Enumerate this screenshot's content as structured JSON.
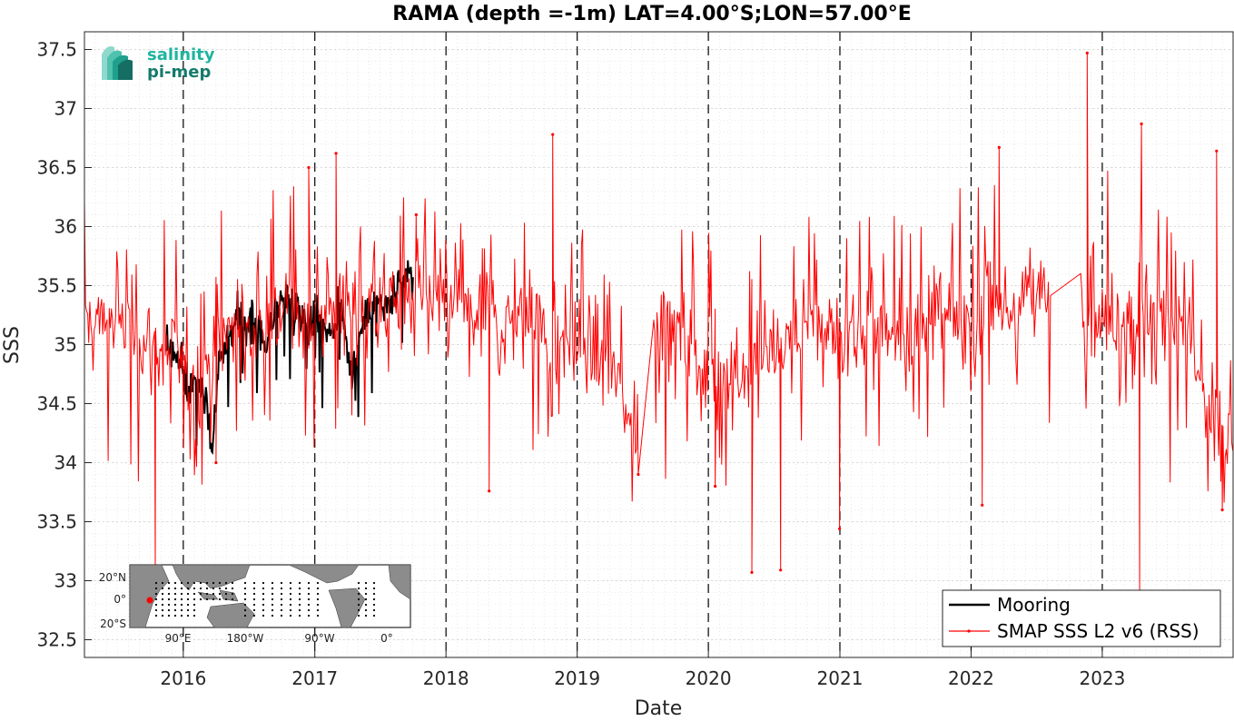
{
  "chart_data": {
    "type": "line",
    "title": "RAMA (depth =-1m) LAT=4.00°S;LON=57.00°E",
    "xlabel": "Date",
    "ylabel": "SSS",
    "xlim": [
      "2015-04-01",
      "2023-12-31"
    ],
    "ylim": [
      32.35,
      37.65
    ],
    "x_ticks": [
      "2016",
      "2017",
      "2018",
      "2019",
      "2020",
      "2021",
      "2022",
      "2023"
    ],
    "y_ticks": [
      "32.5",
      "33",
      "33.5",
      "34",
      "34.5",
      "35",
      "35.5",
      "36",
      "36.5",
      "37",
      "37.5"
    ],
    "y_tick_values": [
      32.5,
      33,
      33.5,
      34,
      34.5,
      35,
      35.5,
      36,
      36.5,
      37,
      37.5
    ],
    "year_marker_dates": [
      "2016-01-01",
      "2017-01-01",
      "2018-01-01",
      "2019-01-01",
      "2020-01-01",
      "2021-01-01",
      "2022-01-01",
      "2023-01-01"
    ],
    "grid": true,
    "legend_position": "bottom-right",
    "series": [
      {
        "name": "Mooring",
        "color": "#000000",
        "points": [
          [
            "2015-11-15",
            35.0
          ],
          [
            "2015-12-15",
            34.9
          ],
          [
            "2016-01-15",
            34.6
          ],
          [
            "2016-02-10",
            34.75
          ],
          [
            "2016-03-05",
            34.6
          ],
          [
            "2016-03-20",
            34.1
          ],
          [
            "2016-04-10",
            34.9
          ],
          [
            "2016-05-10",
            35.1
          ],
          [
            "2016-06-10",
            35.2
          ],
          [
            "2016-07-15",
            35.15
          ],
          [
            "2016-08-15",
            35.0
          ],
          [
            "2016-09-15",
            35.3
          ],
          [
            "2016-10-15",
            35.4
          ],
          [
            "2016-11-15",
            35.3
          ],
          [
            "2016-12-15",
            35.2
          ],
          [
            "2017-01-15",
            35.25
          ],
          [
            "2017-02-15",
            35.1
          ],
          [
            "2017-03-15",
            35.3
          ],
          [
            "2017-04-15",
            34.75
          ],
          [
            "2017-05-15",
            35.2
          ],
          [
            "2017-06-15",
            35.35
          ],
          [
            "2017-07-15",
            35.3
          ],
          [
            "2017-08-15",
            35.4
          ],
          [
            "2017-09-01",
            35.5
          ],
          [
            "2017-09-15",
            35.6
          ],
          [
            "2017-10-01",
            35.55
          ]
        ]
      },
      {
        "name": "SMAP SSS L2 v6 (RSS)",
        "color": "#ff0000",
        "base_points": [
          [
            "2015-04-01",
            35.2
          ],
          [
            "2015-07-01",
            35.2
          ],
          [
            "2015-10-01",
            35.0
          ],
          [
            "2016-01-01",
            34.9
          ],
          [
            "2016-03-01",
            34.8
          ],
          [
            "2016-05-01",
            35.1
          ],
          [
            "2016-07-01",
            35.1
          ],
          [
            "2016-10-01",
            35.3
          ],
          [
            "2017-01-01",
            35.2
          ],
          [
            "2017-04-01",
            35.25
          ],
          [
            "2017-07-01",
            35.35
          ],
          [
            "2017-10-01",
            35.4
          ],
          [
            "2018-01-01",
            35.3
          ],
          [
            "2018-04-01",
            35.25
          ],
          [
            "2018-07-01",
            35.2
          ],
          [
            "2018-10-01",
            35.15
          ],
          [
            "2019-01-01",
            35.05
          ],
          [
            "2019-04-01",
            34.8
          ],
          [
            "2019-06-15",
            34.3
          ],
          [
            "2019-07-01",
            35.0
          ],
          [
            "2019-10-01",
            35.2
          ],
          [
            "2020-01-01",
            34.8
          ],
          [
            "2020-04-01",
            34.75
          ],
          [
            "2020-07-01",
            35.0
          ],
          [
            "2020-10-01",
            35.1
          ],
          [
            "2021-01-01",
            35.15
          ],
          [
            "2021-04-01",
            35.1
          ],
          [
            "2021-07-01",
            35.15
          ],
          [
            "2021-10-01",
            35.25
          ],
          [
            "2022-01-01",
            35.2
          ],
          [
            "2022-04-01",
            35.3
          ],
          [
            "2022-07-01",
            35.35
          ],
          [
            "2022-08-10",
            35.5
          ],
          [
            "2022-11-01",
            35.4
          ],
          [
            "2023-01-01",
            35.25
          ],
          [
            "2023-04-01",
            35.35
          ],
          [
            "2023-07-01",
            35.3
          ],
          [
            "2023-09-01",
            35.0
          ],
          [
            "2023-11-01",
            34.3
          ],
          [
            "2023-12-31",
            34.2
          ]
        ],
        "notable_points": [
          [
            "2015-10-15",
            33.1
          ],
          [
            "2016-04-01",
            34.0
          ],
          [
            "2016-12-15",
            36.5
          ],
          [
            "2017-03-01",
            36.62
          ],
          [
            "2017-10-10",
            36.1
          ],
          [
            "2018-05-01",
            33.76
          ],
          [
            "2018-10-25",
            36.78
          ],
          [
            "2019-06-20",
            33.9
          ],
          [
            "2020-01-20",
            33.8
          ],
          [
            "2020-05-01",
            33.07
          ],
          [
            "2020-07-20",
            33.09
          ],
          [
            "2020-12-31",
            33.44
          ],
          [
            "2022-02-01",
            33.64
          ],
          [
            "2022-03-20",
            36.67
          ],
          [
            "2022-11-20",
            37.47
          ],
          [
            "2023-04-15",
            32.9
          ],
          [
            "2023-04-20",
            36.87
          ],
          [
            "2023-11-15",
            36.64
          ],
          [
            "2023-12-01",
            33.6
          ]
        ],
        "gaps": [
          [
            "2019-06-20",
            "2019-08-01"
          ],
          [
            "2022-08-10",
            "2022-11-01"
          ]
        ]
      }
    ]
  },
  "logo": {
    "line1": "salinity",
    "line2": "pi-mep",
    "primary_color": "#1fb5a0",
    "secondary_color": "#157a6b"
  },
  "inset_map": {
    "lat_labels": [
      "20°N",
      "0°",
      "20°S"
    ],
    "lon_labels": [
      "90°E",
      "180°W",
      "90°W",
      "0°"
    ],
    "location_color": "#ff0000"
  }
}
